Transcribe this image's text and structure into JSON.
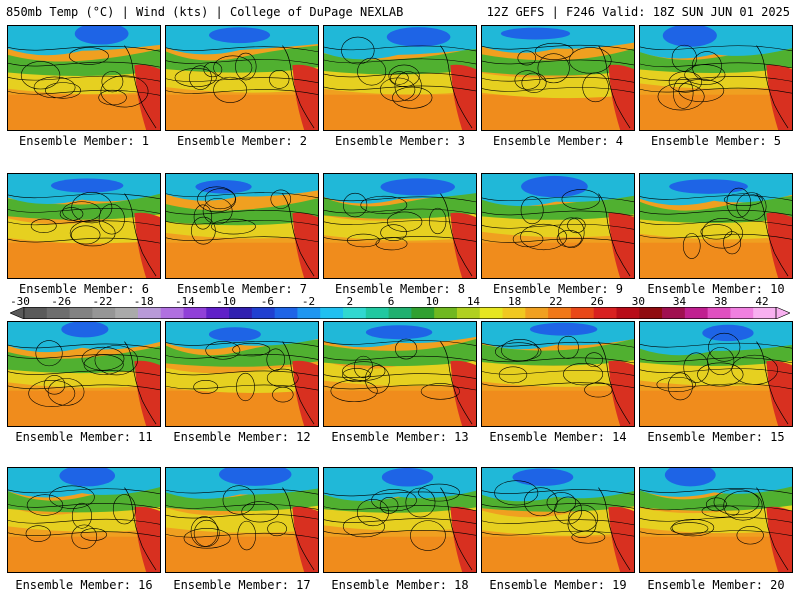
{
  "header": {
    "left": "850mb Temp (°C) | Wind (kts) | College of DuPage NEXLAB",
    "right": "12Z GEFS | F246 Valid: 18Z SUN JUN 01 2025"
  },
  "members": [
    {
      "label": "Ensemble Member: 1"
    },
    {
      "label": "Ensemble Member: 2"
    },
    {
      "label": "Ensemble Member: 3"
    },
    {
      "label": "Ensemble Member: 4"
    },
    {
      "label": "Ensemble Member: 5"
    },
    {
      "label": "Ensemble Member: 6"
    },
    {
      "label": "Ensemble Member: 7"
    },
    {
      "label": "Ensemble Member: 8"
    },
    {
      "label": "Ensemble Member: 9"
    },
    {
      "label": "Ensemble Member: 10"
    },
    {
      "label": "Ensemble Member: 11"
    },
    {
      "label": "Ensemble Member: 12"
    },
    {
      "label": "Ensemble Member: 13"
    },
    {
      "label": "Ensemble Member: 14"
    },
    {
      "label": "Ensemble Member: 15"
    },
    {
      "label": "Ensemble Member: 16"
    },
    {
      "label": "Ensemble Member: 17"
    },
    {
      "label": "Ensemble Member: 18"
    },
    {
      "label": "Ensemble Member: 19"
    },
    {
      "label": "Ensemble Member: 20"
    }
  ],
  "colorbar": {
    "ticks": [
      "-30",
      "-26",
      "-22",
      "-18",
      "-14",
      "-10",
      "-6",
      "-2",
      "2",
      "6",
      "10",
      "14",
      "18",
      "22",
      "26",
      "30",
      "34",
      "38",
      "42"
    ],
    "colors": [
      "#5a5a5a",
      "#6e6e6e",
      "#828282",
      "#969696",
      "#aaaaaa",
      "#b89ad8",
      "#b070e0",
      "#9040d8",
      "#6020c8",
      "#3020b0",
      "#2040d0",
      "#1e64e6",
      "#1e96f0",
      "#20c0f0",
      "#30d8d0",
      "#20c8a0",
      "#20b070",
      "#30a030",
      "#70b820",
      "#b0d020",
      "#e6e620",
      "#f0c820",
      "#f0a020",
      "#f07818",
      "#e84818",
      "#d82020",
      "#b80c18",
      "#900c10",
      "#a01050",
      "#c02090",
      "#e050c0",
      "#f080e0",
      "#f8b0f0"
    ]
  }
}
